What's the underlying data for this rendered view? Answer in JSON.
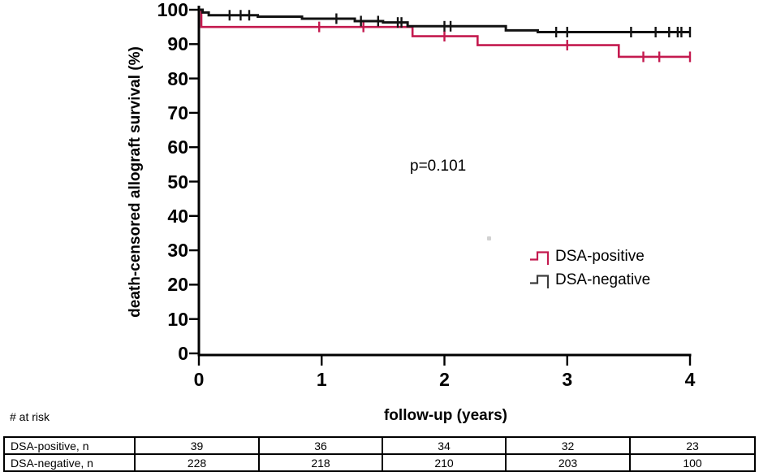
{
  "chart_data": {
    "type": "line",
    "subtype": "kaplan-meier-step",
    "title": "",
    "xlabel": "follow-up (years)",
    "ylabel": "death-censored allograft survival (%)",
    "xlim": [
      0,
      4
    ],
    "ylim": [
      0,
      100
    ],
    "x_ticks": [
      0,
      1,
      2,
      3,
      4
    ],
    "y_ticks": [
      0,
      10,
      20,
      30,
      40,
      50,
      60,
      70,
      80,
      90,
      100
    ],
    "grid": false,
    "annotation": "p=0.101",
    "legend_position": "right-middle",
    "series": [
      {
        "name": "DSA-positive",
        "color": "#c41a4f",
        "steps": [
          [
            0,
            100
          ],
          [
            0.02,
            95.0
          ],
          [
            1.74,
            92.3
          ],
          [
            2.27,
            89.7
          ],
          [
            3.42,
            86.3
          ],
          [
            4,
            86.3
          ]
        ],
        "censor_times": [
          0.98,
          1.34,
          2.0,
          3.0,
          3.62,
          3.75,
          4.0
        ]
      },
      {
        "name": "DSA-negative",
        "color": "#121212",
        "steps": [
          [
            0,
            100
          ],
          [
            0.03,
            99.2
          ],
          [
            0.08,
            98.4
          ],
          [
            0.48,
            98.0
          ],
          [
            0.84,
            97.4
          ],
          [
            1.27,
            96.7
          ],
          [
            1.5,
            96.3
          ],
          [
            1.7,
            95.2
          ],
          [
            2.5,
            94.0
          ],
          [
            2.76,
            93.5
          ],
          [
            4,
            93.5
          ]
        ],
        "censor_times": [
          0.25,
          0.34,
          0.41,
          1.12,
          1.32,
          1.46,
          1.62,
          1.65,
          2.0,
          2.05,
          2.91,
          3.0,
          3.52,
          3.72,
          3.83,
          3.9,
          3.93,
          4.0
        ]
      }
    ]
  },
  "annotation": {
    "p_value": "p=0.101"
  },
  "legend": {
    "items": [
      {
        "label": "DSA-positive",
        "color": "#c41a4f"
      },
      {
        "label": "DSA-negative",
        "color": "#3d3d3d"
      }
    ]
  },
  "risk_table": {
    "header": "# at risk",
    "rows": [
      {
        "label": "DSA-positive, n",
        "values": [
          "39",
          "36",
          "34",
          "32",
          "23"
        ]
      },
      {
        "label": "DSA-negative, n",
        "values": [
          "228",
          "218",
          "210",
          "203",
          "100"
        ]
      }
    ]
  }
}
